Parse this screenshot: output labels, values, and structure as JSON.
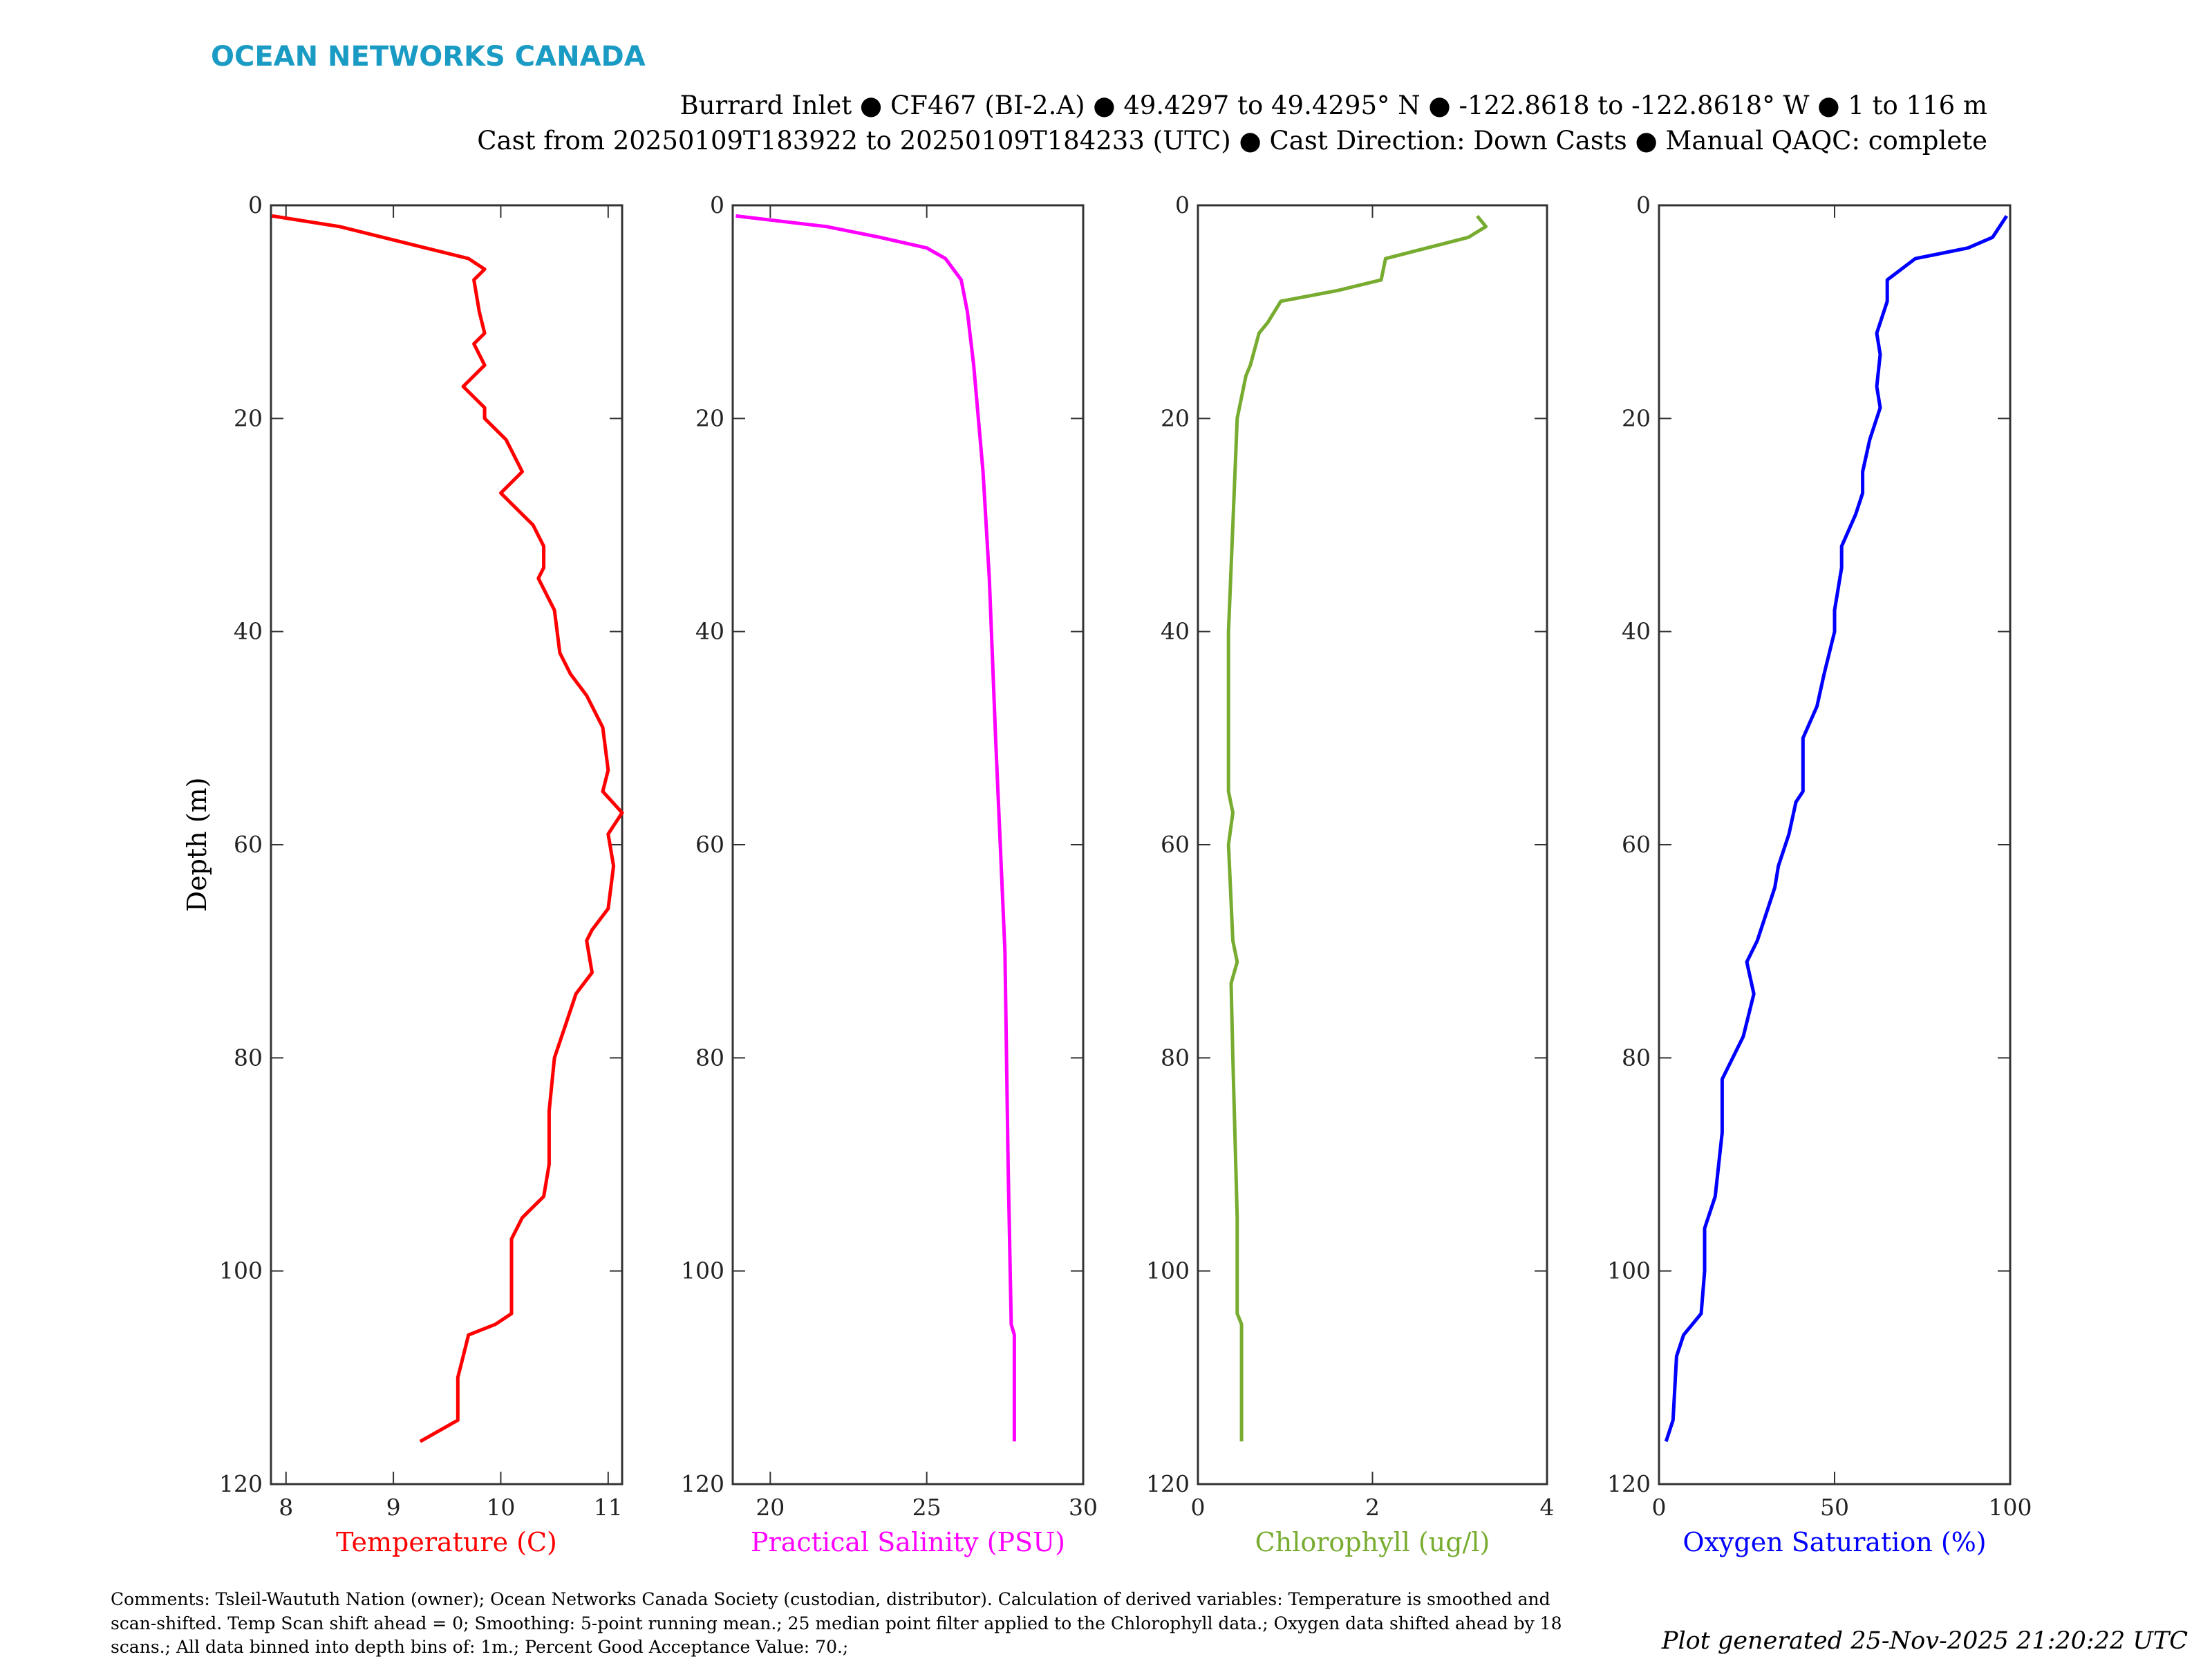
{
  "logo": "OCEAN NETWORKS CANADA",
  "title_line1": "Burrard Inlet ● CF467 (BI-2.A) ● 49.4297 to 49.4295° N ● -122.8618 to -122.8618° W ● 1 to 116 m",
  "title_line2": "Cast from 20250109T183922 to 20250109T184233 (UTC) ● Cast Direction: Down Casts ● Manual QAQC: complete",
  "comments": [
    "Comments: Tsleil-Waututh Nation (owner); Ocean Networks Canada Society (custodian, distributor). Calculation of derived variables: Temperature is smoothed and",
    "scan-shifted. Temp Scan shift ahead = 0; Smoothing: 5-point running mean.; 25 median point filter applied to the Chlorophyll data.; Oxygen data shifted ahead by 18",
    "scans.; All data binned into depth bins of: 1m.; Percent Good Acceptance Value: 70.;"
  ],
  "generated": "Plot generated 25-Nov-2025 21:20:22 UTC",
  "chart_data": [
    {
      "type": "line",
      "xlabel": "Temperature (C)",
      "ylabel": "Depth (m)",
      "color": "#ff0000",
      "xlim": [
        7.86,
        11.13
      ],
      "ylim": [
        0,
        120
      ],
      "xticks": [
        8,
        9,
        10,
        11
      ],
      "yticks": [
        0,
        20,
        40,
        60,
        80,
        100,
        120
      ],
      "points": [
        [
          7.87,
          1
        ],
        [
          8.5,
          2
        ],
        [
          9.3,
          4
        ],
        [
          9.7,
          5
        ],
        [
          9.85,
          6
        ],
        [
          9.75,
          7
        ],
        [
          9.8,
          10
        ],
        [
          9.85,
          12
        ],
        [
          9.75,
          13
        ],
        [
          9.85,
          15
        ],
        [
          9.65,
          17
        ],
        [
          9.85,
          19
        ],
        [
          9.85,
          20
        ],
        [
          10.05,
          22
        ],
        [
          10.2,
          25
        ],
        [
          10.0,
          27
        ],
        [
          10.3,
          30
        ],
        [
          10.4,
          32
        ],
        [
          10.4,
          34
        ],
        [
          10.35,
          35
        ],
        [
          10.5,
          38
        ],
        [
          10.55,
          42
        ],
        [
          10.65,
          44
        ],
        [
          10.8,
          46
        ],
        [
          10.95,
          49
        ],
        [
          11.0,
          53
        ],
        [
          10.95,
          55
        ],
        [
          11.13,
          57
        ],
        [
          11.0,
          59
        ],
        [
          11.05,
          62
        ],
        [
          11.0,
          66
        ],
        [
          10.85,
          68
        ],
        [
          10.8,
          69
        ],
        [
          10.85,
          72
        ],
        [
          10.7,
          74
        ],
        [
          10.6,
          77
        ],
        [
          10.5,
          80
        ],
        [
          10.45,
          85
        ],
        [
          10.45,
          90
        ],
        [
          10.4,
          93
        ],
        [
          10.2,
          95
        ],
        [
          10.1,
          97
        ],
        [
          10.1,
          104
        ],
        [
          9.95,
          105
        ],
        [
          9.7,
          106
        ],
        [
          9.65,
          108
        ],
        [
          9.6,
          110
        ],
        [
          9.6,
          114
        ],
        [
          9.25,
          116
        ]
      ]
    },
    {
      "type": "line",
      "xlabel": "Practical Salinity (PSU)",
      "ylabel": "",
      "color": "#ff00ff",
      "xlim": [
        18.8,
        30
      ],
      "ylim": [
        0,
        120
      ],
      "xticks": [
        20,
        25,
        30
      ],
      "yticks": [
        0,
        20,
        40,
        60,
        80,
        100,
        120
      ],
      "points": [
        [
          18.9,
          1
        ],
        [
          21.8,
          2
        ],
        [
          23.5,
          3
        ],
        [
          25.0,
          4
        ],
        [
          25.6,
          5
        ],
        [
          26.1,
          7
        ],
        [
          26.3,
          10
        ],
        [
          26.5,
          15
        ],
        [
          26.8,
          25
        ],
        [
          27.0,
          35
        ],
        [
          27.2,
          50
        ],
        [
          27.5,
          70
        ],
        [
          27.6,
          90
        ],
        [
          27.7,
          105
        ],
        [
          27.8,
          106
        ],
        [
          27.8,
          116
        ]
      ]
    },
    {
      "type": "line",
      "xlabel": "Chlorophyll (ug/l)",
      "ylabel": "",
      "color": "#77ac30",
      "xlim": [
        0,
        4
      ],
      "ylim": [
        0,
        120
      ],
      "xticks": [
        0,
        2,
        4
      ],
      "yticks": [
        0,
        20,
        40,
        60,
        80,
        100,
        120
      ],
      "points": [
        [
          3.2,
          1
        ],
        [
          3.3,
          2
        ],
        [
          3.1,
          3
        ],
        [
          2.15,
          5
        ],
        [
          2.1,
          7
        ],
        [
          1.6,
          8
        ],
        [
          0.95,
          9
        ],
        [
          0.8,
          11
        ],
        [
          0.7,
          12
        ],
        [
          0.6,
          15
        ],
        [
          0.55,
          16
        ],
        [
          0.45,
          20
        ],
        [
          0.4,
          30
        ],
        [
          0.35,
          40
        ],
        [
          0.35,
          55
        ],
        [
          0.4,
          57
        ],
        [
          0.35,
          60
        ],
        [
          0.4,
          69
        ],
        [
          0.45,
          71
        ],
        [
          0.38,
          73
        ],
        [
          0.4,
          80
        ],
        [
          0.45,
          95
        ],
        [
          0.45,
          104
        ],
        [
          0.5,
          105
        ],
        [
          0.5,
          116
        ]
      ]
    },
    {
      "type": "line",
      "xlabel": "Oxygen Saturation (%)",
      "ylabel": "",
      "color": "#0000ff",
      "xlim": [
        0,
        100
      ],
      "ylim": [
        0,
        120
      ],
      "xticks": [
        0,
        50,
        100
      ],
      "yticks": [
        0,
        20,
        40,
        60,
        80,
        100,
        120
      ],
      "points": [
        [
          99,
          1
        ],
        [
          95,
          3
        ],
        [
          88,
          4
        ],
        [
          73,
          5
        ],
        [
          65,
          7
        ],
        [
          65,
          9
        ],
        [
          62,
          12
        ],
        [
          63,
          14
        ],
        [
          62,
          17
        ],
        [
          63,
          19
        ],
        [
          60,
          22
        ],
        [
          58,
          25
        ],
        [
          58,
          27
        ],
        [
          56,
          29
        ],
        [
          52,
          32
        ],
        [
          52,
          34
        ],
        [
          50,
          38
        ],
        [
          50,
          40
        ],
        [
          47,
          44
        ],
        [
          45,
          47
        ],
        [
          41,
          50
        ],
        [
          41,
          52
        ],
        [
          41,
          55
        ],
        [
          39,
          56
        ],
        [
          37,
          59
        ],
        [
          34,
          62
        ],
        [
          33,
          64
        ],
        [
          28,
          69
        ],
        [
          25,
          71
        ],
        [
          27,
          74
        ],
        [
          24,
          78
        ],
        [
          18,
          82
        ],
        [
          18,
          87
        ],
        [
          16,
          93
        ],
        [
          13,
          96
        ],
        [
          13,
          100
        ],
        [
          12,
          104
        ],
        [
          7,
          106
        ],
        [
          5,
          108
        ],
        [
          4,
          114
        ],
        [
          2,
          116
        ]
      ]
    }
  ]
}
